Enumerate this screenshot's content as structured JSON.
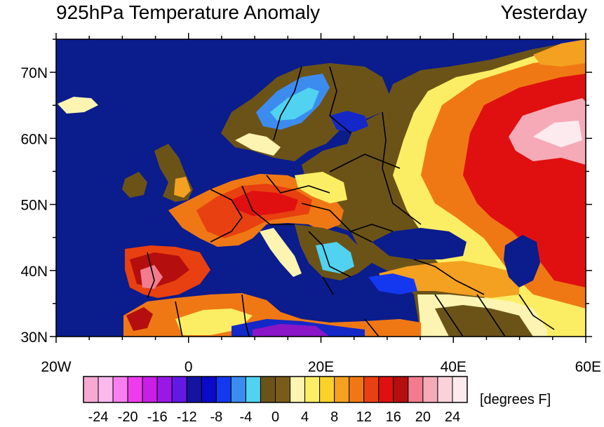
{
  "title": "925hPa Temperature Anomaly",
  "subtitle": "Yesterday",
  "map": {
    "lon_range": [
      -20,
      60
    ],
    "lat_range": [
      30,
      75
    ],
    "lat_ticks": [
      "70N",
      "60N",
      "50N",
      "40N",
      "30N"
    ],
    "lat_tick_values": [
      70,
      60,
      50,
      40,
      30
    ],
    "lon_ticks": [
      "20W",
      "0",
      "20E",
      "40E",
      "60E"
    ],
    "lon_tick_values": [
      -20,
      0,
      20,
      40,
      60
    ],
    "ocean_color": "#0b1c8c",
    "land_neutral_color": "#6b5318",
    "border_color": "#000000",
    "regions": [
      {
        "name": "Russia warm anomaly",
        "color": "#e81010"
      },
      {
        "name": "Russia hot core",
        "color": "#f7b7c8"
      },
      {
        "name": "Iberia warm",
        "color": "#cc1414"
      },
      {
        "name": "Central Europe warm",
        "color": "#e63010"
      },
      {
        "name": "Scandinavia cool",
        "color": "#4fc7ee"
      },
      {
        "name": "Eastern Mediterranean cool",
        "color": "#1428c8"
      },
      {
        "name": "Libya cold",
        "color": "#8a16c8"
      }
    ]
  },
  "colorbar": {
    "unit_label": "[degrees F]",
    "colors": [
      "#f9a8d4",
      "#fbb9ee",
      "#f97ff0",
      "#ee3bee",
      "#c81ee6",
      "#9a18e6",
      "#6418e6",
      "#1414a0",
      "#0a0ac8",
      "#1438f0",
      "#3c8cf0",
      "#50d2f0",
      "#6b5318",
      "#7a5c1a",
      "#fcf4b0",
      "#fcee64",
      "#fad22a",
      "#f4a020",
      "#f07814",
      "#e84010",
      "#e01010",
      "#b40e0e",
      "#f27c8e",
      "#f6aab8",
      "#fad2da",
      "#fdeaee"
    ],
    "tick_labels": [
      "-24",
      "-20",
      "-16",
      "-12",
      "-8",
      "-4",
      "0",
      "4",
      "8",
      "12",
      "16",
      "20",
      "24"
    ],
    "tick_values": [
      -24,
      -20,
      -16,
      -12,
      -8,
      -4,
      0,
      4,
      8,
      12,
      16,
      20,
      24
    ]
  }
}
